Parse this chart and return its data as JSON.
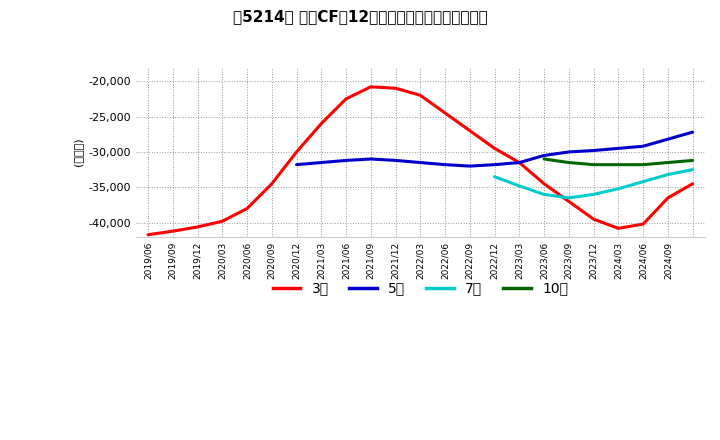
{
  "title": "［5214］ 投賄CFの12か月移動合計の平均値の推移",
  "ylabel": "(百万円)",
  "ylim": [
    -42000,
    -18000
  ],
  "yticks": [
    -40000,
    -35000,
    -30000,
    -25000,
    -20000
  ],
  "background_color": "#ffffff",
  "grid_color": "#aaaaaa",
  "series": {
    "3年": {
      "color": "#ff0000",
      "values_x": [
        0,
        1,
        2,
        3,
        4,
        5,
        6,
        7,
        8,
        9,
        10,
        11,
        12,
        13,
        14,
        15,
        16,
        17,
        18,
        19,
        20,
        21,
        22
      ],
      "values_y": [
        -41700,
        -41200,
        -40600,
        -39800,
        -38000,
        -34500,
        -30000,
        -26000,
        -22500,
        -20800,
        -21000,
        -22000,
        -24500,
        -27000,
        -29500,
        -31500,
        -34500,
        -37000,
        -39500,
        -40800,
        -40200,
        -36500,
        -34500
      ]
    },
    "5年": {
      "color": "#0000cc",
      "values_x": [
        6,
        7,
        8,
        9,
        10,
        11,
        12,
        13,
        14,
        15,
        16,
        17,
        18,
        19,
        20,
        21,
        22
      ],
      "values_y": [
        -31800,
        -31500,
        -31200,
        -31000,
        -31200,
        -31500,
        -31800,
        -32000,
        -31800,
        -31500,
        -30500,
        -30000,
        -29800,
        -29500,
        -29200,
        -28200,
        -27200
      ]
    },
    "7年": {
      "color": "#00cccc",
      "values_x": [
        14,
        15,
        16,
        17,
        18,
        19,
        20,
        21,
        22
      ],
      "values_y": [
        -33500,
        -34800,
        -36000,
        -36500,
        -36000,
        -35200,
        -34200,
        -33200,
        -32500
      ]
    },
    "10年": {
      "color": "#006600",
      "values_x": [
        16,
        17,
        18,
        19,
        20,
        21,
        22
      ],
      "values_y": [
        -31000,
        -31500,
        -31800,
        -31800,
        -31800,
        -31500,
        -31200
      ]
    }
  },
  "xtick_labels": [
    "2019/06",
    "2019/09",
    "2019/12",
    "2020/03",
    "2020/06",
    "2020/09",
    "2020/12",
    "2021/03",
    "2021/06",
    "2021/09",
    "2021/12",
    "2022/03",
    "2022/06",
    "2022/09",
    "2022/12",
    "2023/03",
    "2023/06",
    "2023/09",
    "2023/12",
    "2024/03",
    "2024/06",
    "2024/09",
    ""
  ],
  "n_points": 23,
  "legend_labels": [
    "3年",
    "5年",
    "7年",
    "10年"
  ],
  "legend_colors": [
    "#ff0000",
    "#0000cc",
    "#00cccc",
    "#006600"
  ]
}
